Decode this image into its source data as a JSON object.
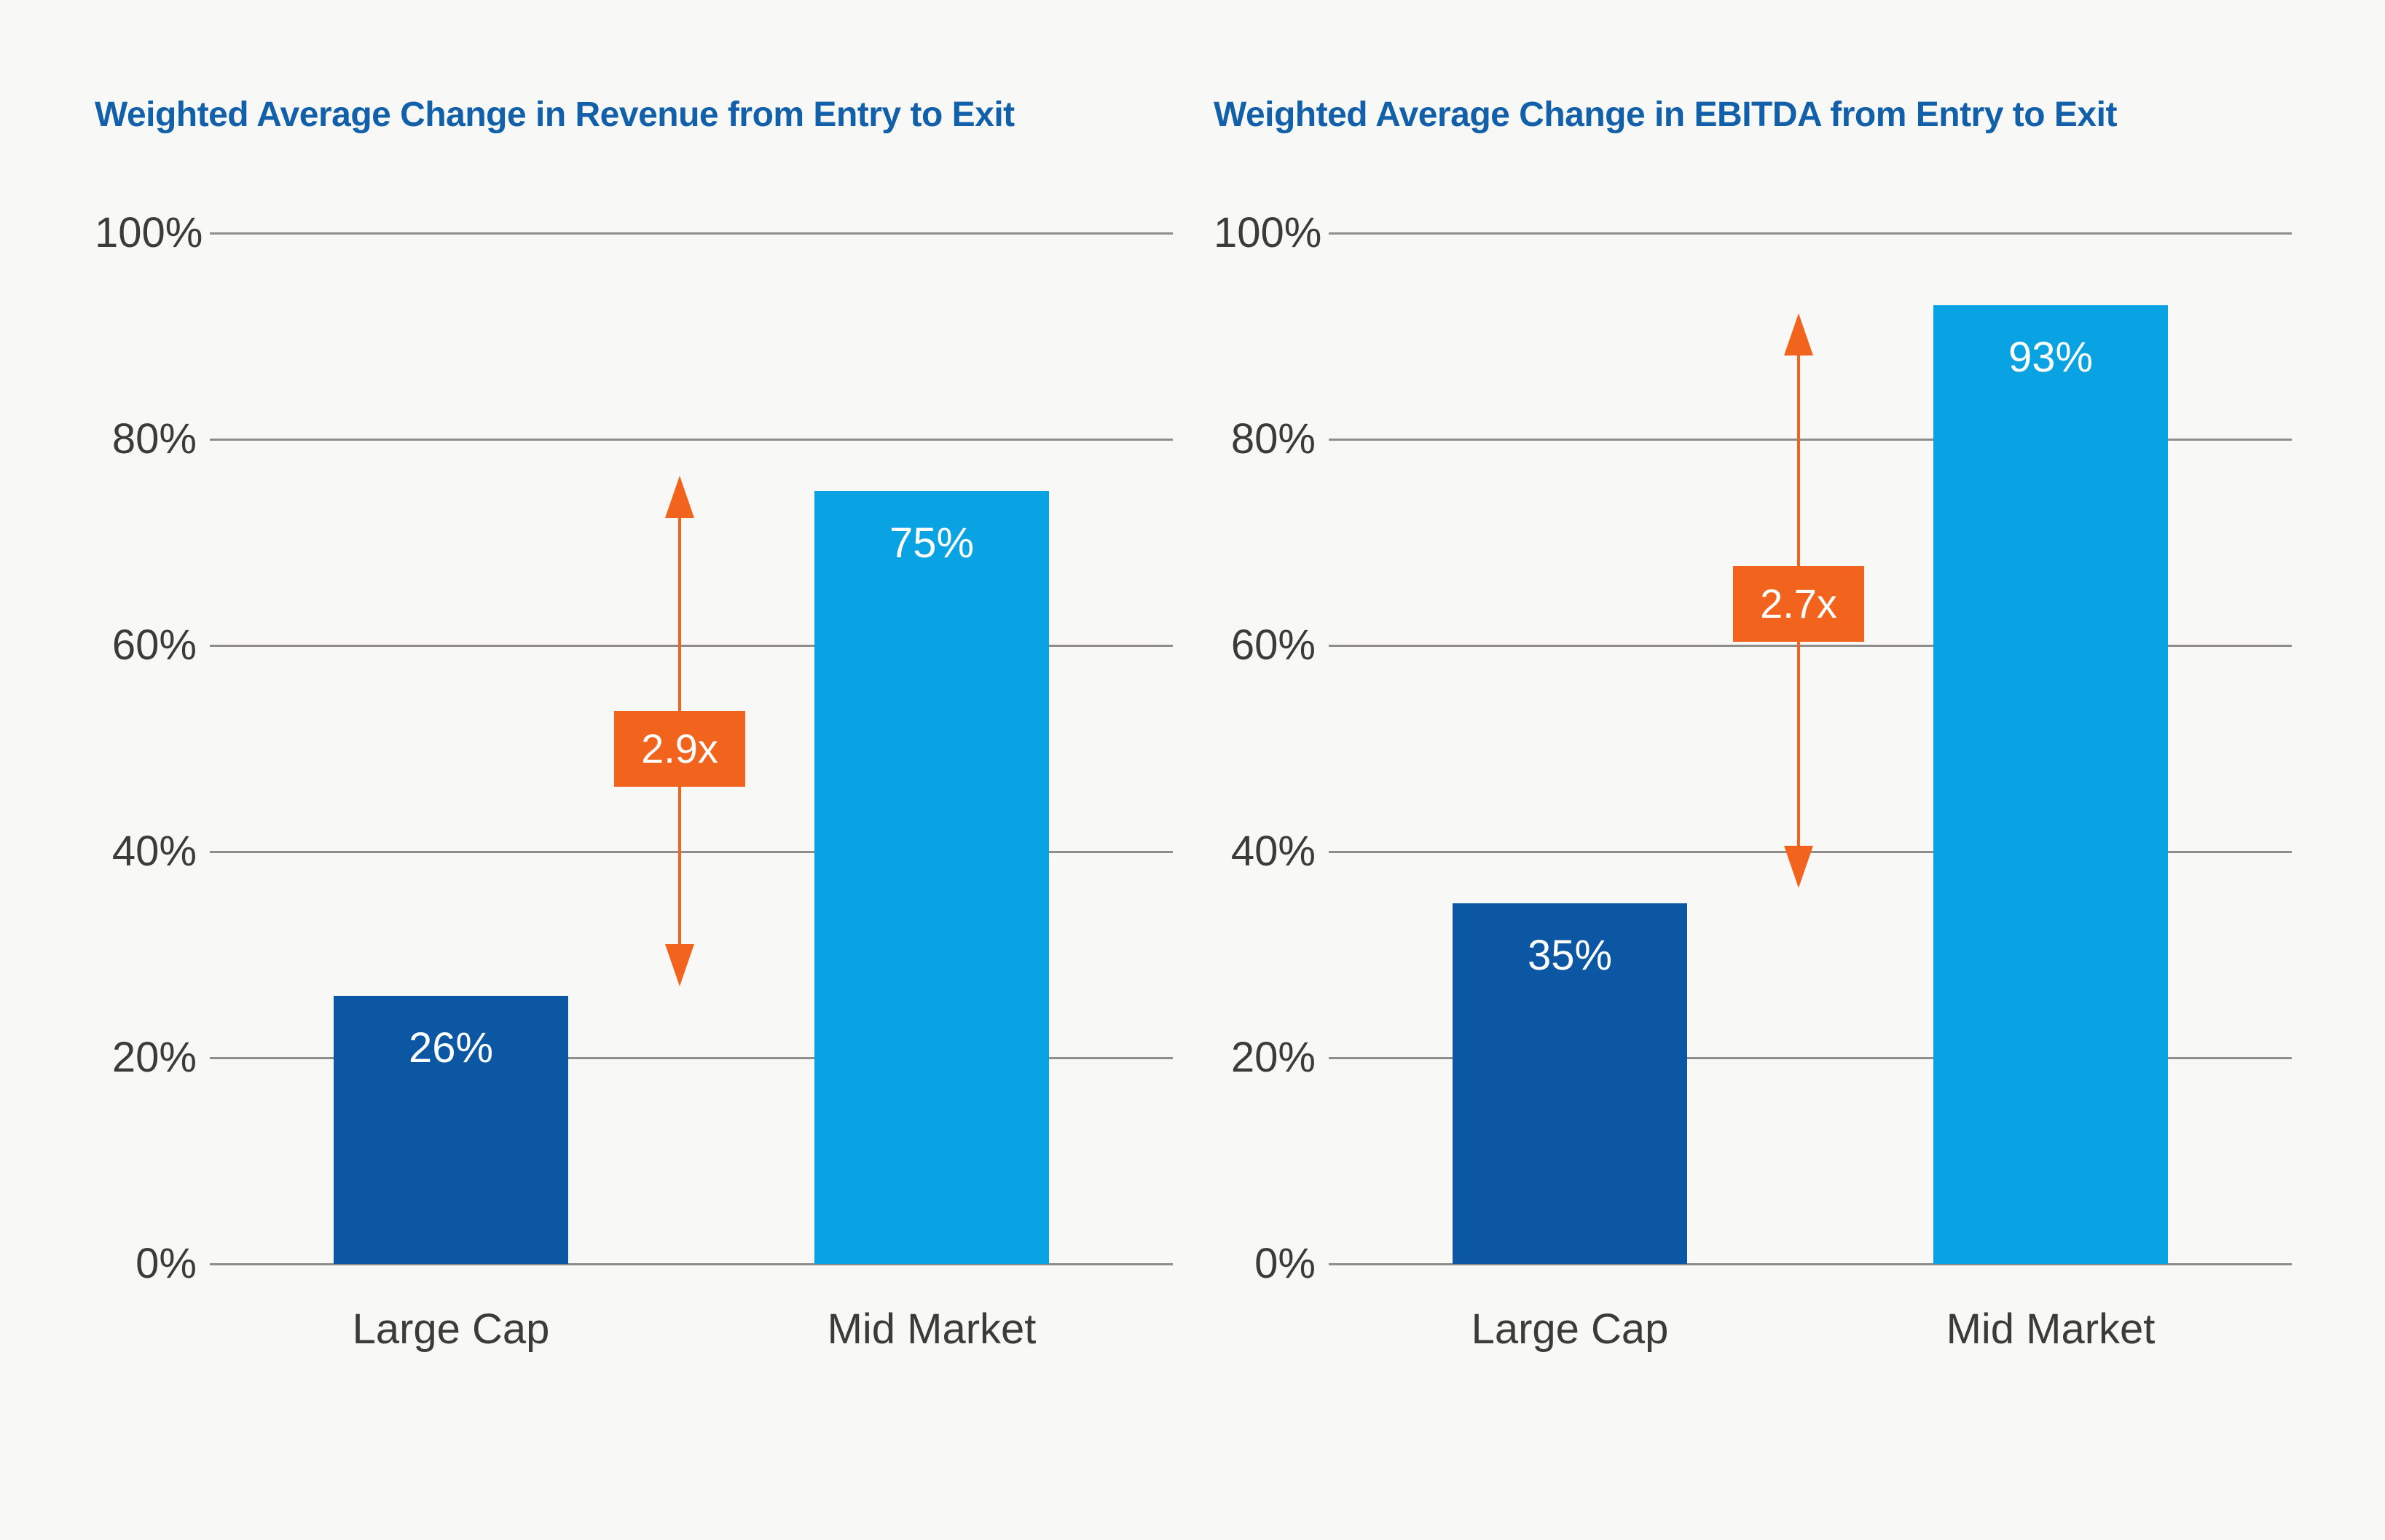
{
  "colors": {
    "background": "#F8F8F6",
    "title_blue": "#1160A9",
    "axis_text": "#3B3B3A",
    "gridline": "#8F8E8D",
    "dark_blue": "#0B57A4",
    "light_blue": "#09A2E3",
    "orange": "#F2641E",
    "white_label": "#FFFFFF"
  },
  "chart_data": [
    {
      "type": "bar",
      "title": "Weighted Average Change in Revenue from Entry to Exit",
      "categories": [
        "Large Cap",
        "Mid Market"
      ],
      "values": [
        26,
        75
      ],
      "bar_labels": [
        "26%",
        "75%"
      ],
      "bar_color_keys": [
        "dark_blue",
        "light_blue"
      ],
      "xlabel": "",
      "ylabel": "",
      "ylim": [
        0,
        100
      ],
      "grid": true,
      "legend": false,
      "y_ticks": [
        {
          "label": "100%",
          "value": 100
        },
        {
          "label": "80%",
          "value": 80
        },
        {
          "label": "60%",
          "value": 60
        },
        {
          "label": "40%",
          "value": 40
        },
        {
          "label": "20%",
          "value": 20
        },
        {
          "label": "0%",
          "value": 0
        }
      ],
      "annotation": {
        "label": "2.9x",
        "arrow_top_value": 76.5,
        "arrow_bottom_value": 26.9,
        "badge_center_value": 50
      }
    },
    {
      "type": "bar",
      "title": "Weighted Average Change in EBITDA from Entry to Exit",
      "categories": [
        "Large Cap",
        "Mid Market"
      ],
      "values": [
        35,
        93
      ],
      "bar_labels": [
        "35%",
        "93%"
      ],
      "bar_color_keys": [
        "dark_blue",
        "light_blue"
      ],
      "xlabel": "",
      "ylabel": "",
      "ylim": [
        0,
        100
      ],
      "grid": true,
      "legend": false,
      "y_ticks": [
        {
          "label": "100%",
          "value": 100
        },
        {
          "label": "80%",
          "value": 80
        },
        {
          "label": "60%",
          "value": 60
        },
        {
          "label": "40%",
          "value": 40
        },
        {
          "label": "20%",
          "value": 20
        },
        {
          "label": "0%",
          "value": 0
        }
      ],
      "annotation": {
        "label": "2.7x",
        "arrow_top_value": 92.2,
        "arrow_bottom_value": 36.5,
        "badge_center_value": 64
      }
    }
  ]
}
